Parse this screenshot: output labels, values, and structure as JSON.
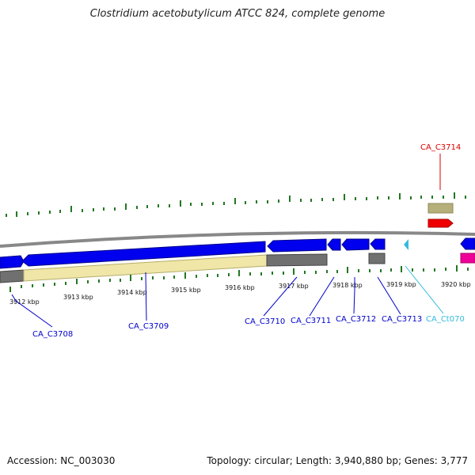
{
  "title": "Clostridium acetobutylicum ATCC 824, complete genome",
  "footer": {
    "accession": "Accession: NC_003030",
    "info": "Topology: circular; Length: 3,940,880 bp; Genes: 3,777"
  },
  "ruler_labels": [
    "3912 kbp",
    "3913 kbp",
    "3914 kbp",
    "3915 kbp",
    "3916 kbp",
    "3917 kbp",
    "3918 kbp",
    "3919 kbp",
    "3920 kbp"
  ],
  "gene_labels": [
    {
      "name": "CA_C3708",
      "color": "#0000cc"
    },
    {
      "name": "CA_C3709",
      "color": "#0000cc"
    },
    {
      "name": "CA_C3710",
      "color": "#0000cc"
    },
    {
      "name": "CA_C3711",
      "color": "#0000cc"
    },
    {
      "name": "CA_C3712",
      "color": "#0000cc"
    },
    {
      "name": "CA_C3713",
      "color": "#0000cc"
    },
    {
      "name": "CA_Ct070",
      "color": "#33bbdd"
    },
    {
      "name": "CA_C3714",
      "color": "#dd0000"
    }
  ],
  "colors": {
    "cds": "#0000ee",
    "cds_outline": "#000088",
    "gene_gray": "#707070",
    "rna_cyan": "#33bbdd",
    "highlight_yellow": "#efe6a8",
    "olive": "#b5b07a",
    "red": "#ee0000",
    "magenta": "#ee0099",
    "tick_green": "#227722",
    "backbone": "#888888"
  }
}
